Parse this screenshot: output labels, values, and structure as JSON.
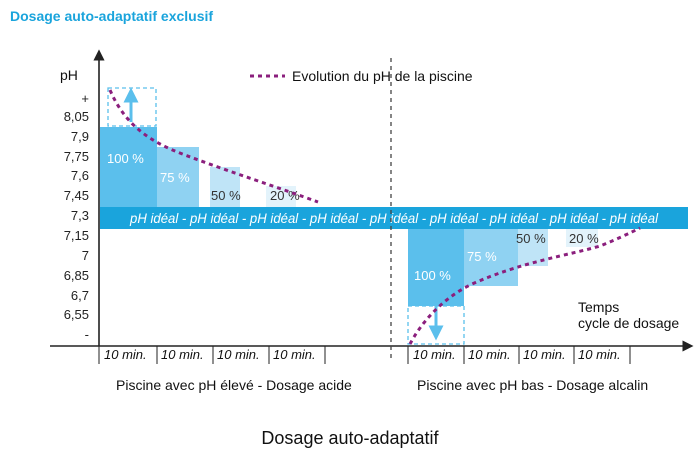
{
  "header": {
    "title": "Dosage auto-adaptatif exclusif",
    "title_color": "#1aa4dc"
  },
  "axis": {
    "y_label": "pH",
    "y_ticks": [
      "+",
      "8,05",
      "7,9",
      "7,75",
      "7,6",
      "7,45",
      "7,3",
      "7,15",
      "7",
      "6,85",
      "6,7",
      "6,55",
      "-"
    ],
    "x_label_line1": "Temps",
    "x_label_line2": "cycle de dosage"
  },
  "legend": {
    "label": "Evolution du pH de la piscine",
    "color": "#8b1f7d"
  },
  "band": {
    "text": "pH idéal - pH idéal - pH idéal - pH idéal - pH idéal - pH idéal - pH idéal - pH idéal - pH idéal",
    "color": "#1aa4dc"
  },
  "left_panel": {
    "caption": "Piscine avec pH élevé - Dosage acide",
    "steps": [
      "100 %",
      "75 %",
      "50 %",
      "20 %"
    ],
    "periods": [
      "10 min.",
      "10 min.",
      "10 min.",
      "10 min."
    ]
  },
  "right_panel": {
    "caption": "Piscine avec pH bas - Dosage alcalin",
    "steps": [
      "100 %",
      "75 %",
      "50 %",
      "20 %"
    ],
    "periods": [
      "10 min.",
      "10 min.",
      "10 min.",
      "10 min."
    ]
  },
  "footer": {
    "caption": "Dosage auto-adaptatif"
  },
  "colors": {
    "step1": "#5bbfec",
    "step2": "#8fd2f2",
    "step3": "#bfe4f7",
    "step4": "#e3f3fb",
    "axis": "#222222"
  }
}
